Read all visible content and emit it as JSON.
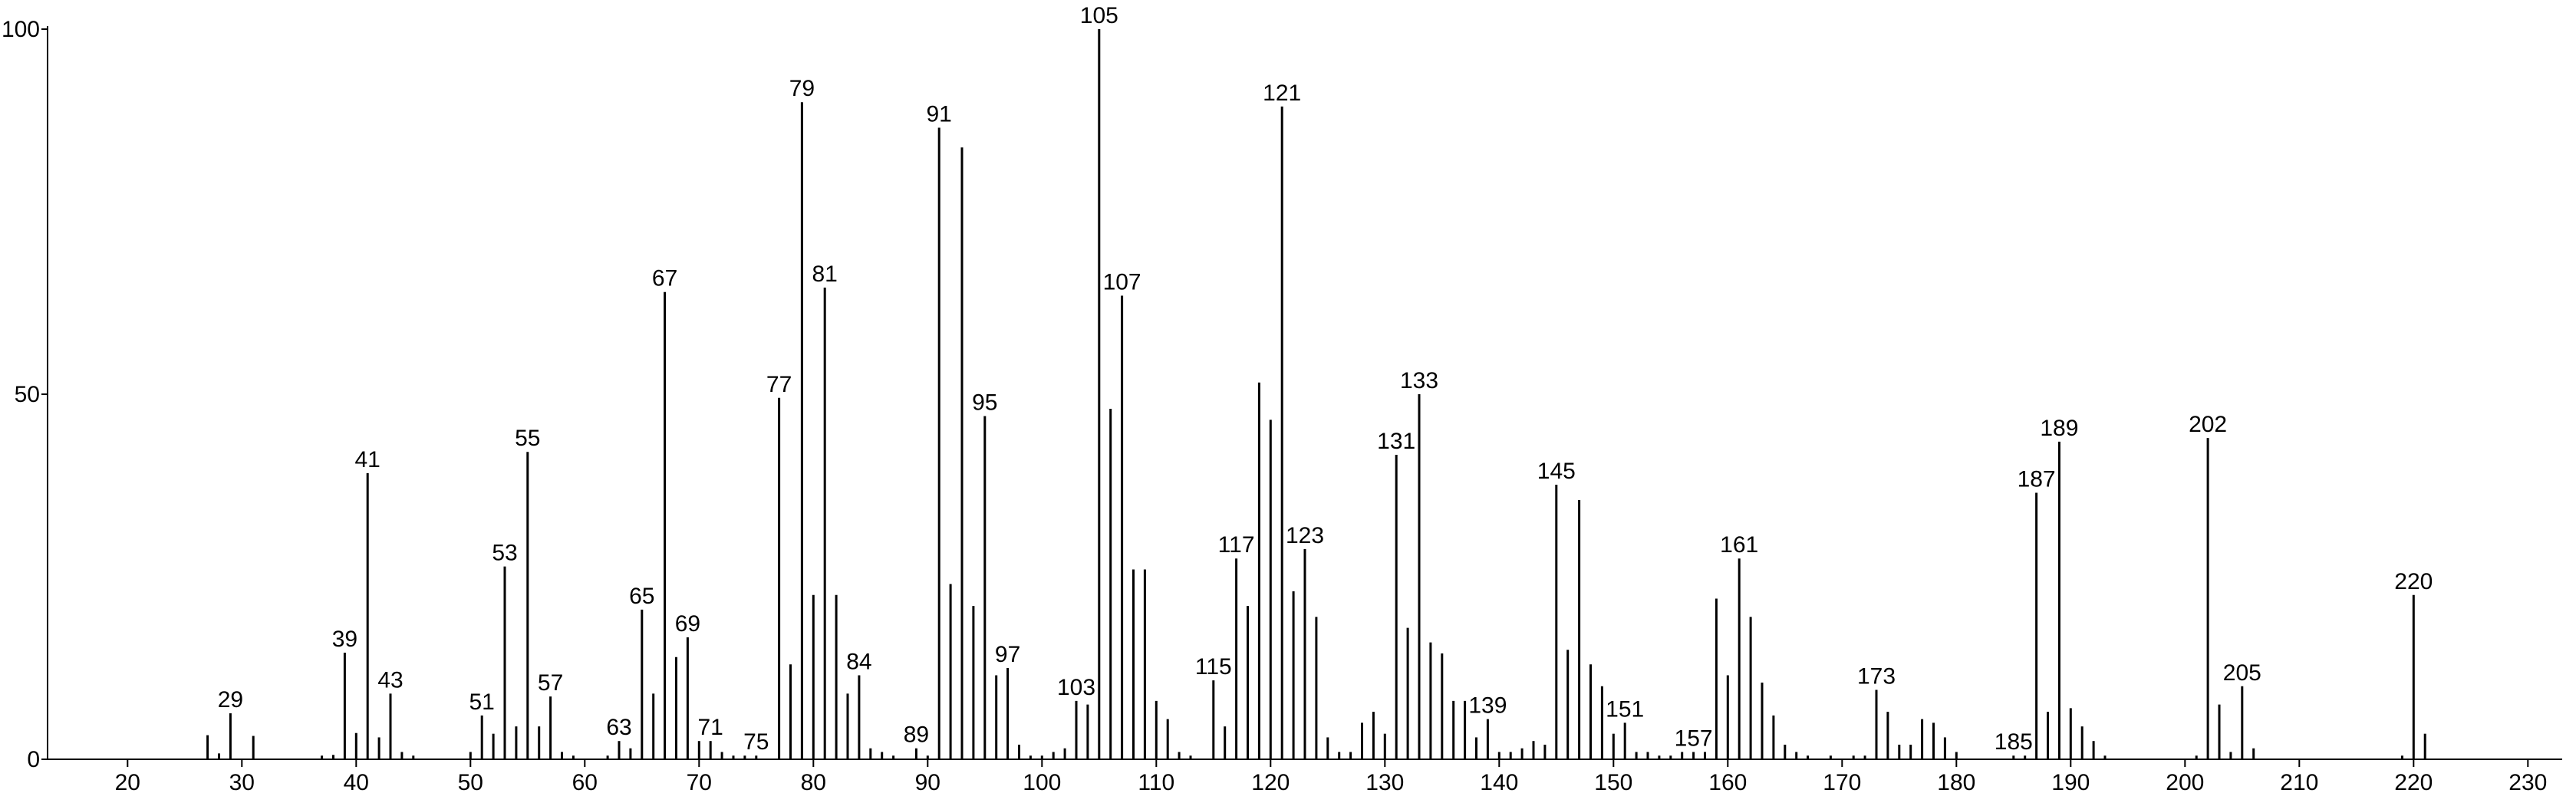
{
  "chart_data": {
    "type": "spectrum",
    "color": "#000000",
    "xlim": [
      13,
      233
    ],
    "xticks": [
      20,
      30,
      40,
      50,
      60,
      70,
      80,
      90,
      100,
      110,
      120,
      130,
      140,
      150,
      160,
      170,
      180,
      190,
      200,
      210,
      220,
      230
    ],
    "ylim": [
      0,
      100
    ],
    "yticks": [
      0,
      50,
      100
    ],
    "x": [
      27,
      28,
      29,
      31,
      37,
      38,
      39,
      40,
      41,
      42,
      43,
      44,
      45,
      50,
      51,
      52,
      53,
      54,
      55,
      56,
      57,
      58,
      59,
      62,
      63,
      64,
      65,
      66,
      67,
      68,
      69,
      70,
      71,
      72,
      73,
      74,
      75,
      77,
      78,
      79,
      80,
      81,
      82,
      83,
      84,
      85,
      86,
      87,
      89,
      90,
      91,
      92,
      93,
      94,
      95,
      96,
      97,
      98,
      99,
      100,
      101,
      102,
      103,
      104,
      105,
      106,
      107,
      108,
      109,
      110,
      111,
      112,
      113,
      115,
      116,
      117,
      118,
      119,
      120,
      121,
      122,
      123,
      124,
      125,
      126,
      127,
      128,
      129,
      130,
      131,
      132,
      133,
      134,
      135,
      136,
      137,
      138,
      139,
      140,
      141,
      142,
      143,
      144,
      145,
      146,
      147,
      148,
      149,
      150,
      151,
      152,
      153,
      154,
      155,
      156,
      157,
      158,
      159,
      160,
      161,
      162,
      163,
      164,
      165,
      166,
      167,
      169,
      171,
      172,
      173,
      174,
      175,
      176,
      177,
      178,
      179,
      180,
      185,
      186,
      187,
      188,
      189,
      190,
      191,
      192,
      193,
      201,
      202,
      203,
      204,
      205,
      206,
      219,
      220,
      221
    ],
    "values": [
      3.3,
      0.8,
      6.3,
      3.2,
      0.5,
      0.6,
      14.6,
      3.6,
      39.2,
      3,
      9,
      1,
      0.5,
      1,
      6,
      3.5,
      26.4,
      4.5,
      42.1,
      4.5,
      8.6,
      1,
      0.5,
      0.5,
      2.5,
      1.5,
      20.5,
      9,
      64,
      14,
      16.7,
      2.5,
      2.5,
      1,
      0.5,
      0.5,
      0.5,
      49.5,
      13,
      90,
      22.5,
      64.6,
      22.5,
      9,
      11.5,
      1.5,
      1,
      0.5,
      1.5,
      0.5,
      86.5,
      24,
      83.8,
      21,
      47,
      11.5,
      12.5,
      2,
      0.5,
      0.5,
      1,
      1.5,
      8,
      7.5,
      100,
      48,
      63.5,
      26,
      26,
      8,
      5.5,
      1,
      0.5,
      10.8,
      4.5,
      27.5,
      21,
      51.6,
      46.5,
      89.4,
      23,
      28.8,
      19.5,
      3,
      1,
      1,
      5,
      6.5,
      3.5,
      41.7,
      18,
      50,
      16,
      14.5,
      8,
      8,
      3,
      5.5,
      1,
      1,
      1.5,
      2.5,
      2,
      37.6,
      15,
      35.5,
      13,
      10,
      3.5,
      5,
      1,
      1,
      0.5,
      0.5,
      1,
      1,
      1,
      22,
      11.5,
      27.5,
      19.5,
      10.5,
      6,
      2,
      1,
      0.5,
      0.5,
      0.5,
      0.5,
      9.5,
      6.5,
      2,
      2,
      5.5,
      5,
      3,
      1,
      0.5,
      0.5,
      36.5,
      6.5,
      43.5,
      7,
      4.5,
      2.5,
      0.5,
      0.5,
      44,
      7.5,
      1,
      10,
      1.5,
      0.5,
      22.5,
      3.5
    ],
    "peak_labels": [
      null,
      null,
      "29",
      null,
      null,
      null,
      "39",
      null,
      "41",
      null,
      "43",
      null,
      null,
      null,
      "51",
      null,
      "53",
      null,
      "55",
      null,
      "57",
      null,
      null,
      null,
      "63",
      null,
      "65",
      null,
      "67",
      null,
      "69",
      null,
      "71",
      null,
      null,
      null,
      "75",
      "77",
      null,
      "79",
      null,
      "81",
      null,
      null,
      "84",
      null,
      null,
      null,
      "89",
      null,
      "91",
      null,
      null,
      null,
      "95",
      null,
      "97",
      null,
      null,
      null,
      null,
      null,
      "103",
      null,
      "105",
      null,
      "107",
      null,
      null,
      null,
      null,
      null,
      null,
      "115",
      null,
      "117",
      null,
      null,
      null,
      "121",
      null,
      "123",
      null,
      null,
      null,
      null,
      null,
      null,
      null,
      "131",
      null,
      "133",
      null,
      null,
      null,
      null,
      null,
      "139",
      null,
      null,
      null,
      null,
      null,
      "145",
      null,
      null,
      null,
      null,
      null,
      "151",
      null,
      null,
      null,
      null,
      null,
      "157",
      null,
      null,
      null,
      "161",
      null,
      null,
      null,
      null,
      null,
      null,
      null,
      null,
      null,
      "173",
      null,
      null,
      null,
      null,
      null,
      null,
      null,
      "185",
      null,
      "187",
      null,
      "189",
      null,
      null,
      null,
      null,
      null,
      "202",
      null,
      null,
      "205",
      null,
      null,
      "220",
      null
    ]
  }
}
